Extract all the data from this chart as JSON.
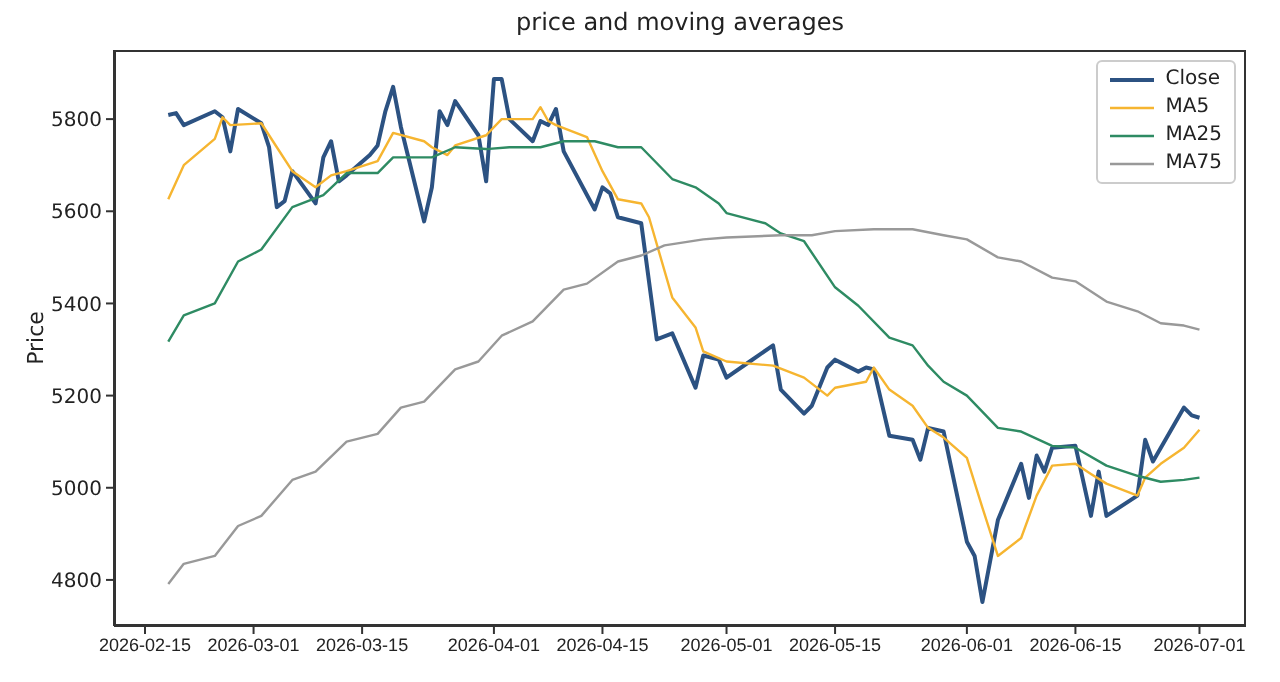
{
  "chart_data": {
    "type": "line",
    "title": "price and moving averages",
    "ylabel": "Price",
    "legend": "top right",
    "xlim": [
      "2026-02-11",
      "2026-07-07"
    ],
    "xticks": [
      "2026-02-15",
      "2026-03-01",
      "2026-03-15",
      "2026-04-01",
      "2026-04-15",
      "2026-05-01",
      "2026-05-15",
      "2026-06-01",
      "2026-06-15",
      "2026-07-01"
    ],
    "ylim": [
      4700,
      5950
    ],
    "yticks": [
      4800,
      5000,
      5200,
      5400,
      5600,
      5800
    ],
    "series": [
      {
        "name": "Close",
        "color": "#2c5282",
        "x": [
          "2026-02-18",
          "2026-02-19",
          "2026-02-20",
          "2026-02-24",
          "2026-02-25",
          "2026-02-26",
          "2026-02-27",
          "2026-03-02",
          "2026-03-03",
          "2026-03-04",
          "2026-03-05",
          "2026-03-06",
          "2026-03-09",
          "2026-03-10",
          "2026-03-11",
          "2026-03-12",
          "2026-03-13",
          "2026-03-16",
          "2026-03-17",
          "2026-03-18",
          "2026-03-19",
          "2026-03-20",
          "2026-03-23",
          "2026-03-24",
          "2026-03-25",
          "2026-03-26",
          "2026-03-27",
          "2026-03-30",
          "2026-03-31",
          "2026-04-01",
          "2026-04-02",
          "2026-04-03",
          "2026-04-06",
          "2026-04-07",
          "2026-04-08",
          "2026-04-09",
          "2026-04-10",
          "2026-04-14",
          "2026-04-15",
          "2026-04-16",
          "2026-04-17",
          "2026-04-20",
          "2026-04-22",
          "2026-04-24",
          "2026-04-27",
          "2026-04-28",
          "2026-04-30",
          "2026-05-01",
          "2026-05-04",
          "2026-05-07",
          "2026-05-08",
          "2026-05-11",
          "2026-05-12",
          "2026-05-14",
          "2026-05-15",
          "2026-05-18",
          "2026-05-19",
          "2026-05-20",
          "2026-05-22",
          "2026-05-25",
          "2026-05-26",
          "2026-05-27",
          "2026-05-29",
          "2026-06-01",
          "2026-06-02",
          "2026-06-03",
          "2026-06-05",
          "2026-06-08",
          "2026-06-09",
          "2026-06-10",
          "2026-06-11",
          "2026-06-12",
          "2026-06-15",
          "2026-06-17",
          "2026-06-18",
          "2026-06-19",
          "2026-06-23",
          "2026-06-24",
          "2026-06-25",
          "2026-06-29",
          "2026-06-30",
          "2026-07-01"
        ],
        "values": [
          5809,
          5813,
          5787,
          5817,
          5804,
          5730,
          5822,
          5791,
          5739,
          5609,
          5622,
          5687,
          5617,
          5717,
          5752,
          5665,
          5678,
          5722,
          5743,
          5817,
          5870,
          5783,
          5578,
          5652,
          5817,
          5787,
          5839,
          5765,
          5665,
          5887,
          5887,
          5800,
          5752,
          5796,
          5787,
          5822,
          5730,
          5604,
          5652,
          5639,
          5587,
          5574,
          5322,
          5335,
          5217,
          5287,
          5278,
          5239,
          5274,
          5309,
          5213,
          5161,
          5178,
          5261,
          5278,
          5252,
          5261,
          5257,
          5113,
          5104,
          5061,
          5130,
          5122,
          4883,
          4852,
          4752,
          4930,
          5052,
          4978,
          5070,
          5035,
          5087,
          5091,
          4939,
          5035,
          4939,
          4983,
          5104,
          5057,
          5174,
          5157,
          5152
        ]
      },
      {
        "name": "MA5",
        "color": "#f6b530",
        "x": [
          "2026-02-18",
          "2026-02-20",
          "2026-02-24",
          "2026-02-25",
          "2026-02-26",
          "2026-03-02",
          "2026-03-04",
          "2026-03-06",
          "2026-03-09",
          "2026-03-11",
          "2026-03-13",
          "2026-03-17",
          "2026-03-19",
          "2026-03-23",
          "2026-03-24",
          "2026-03-26",
          "2026-03-27",
          "2026-03-31",
          "2026-04-02",
          "2026-04-06",
          "2026-04-07",
          "2026-04-08",
          "2026-04-09",
          "2026-04-13",
          "2026-04-15",
          "2026-04-17",
          "2026-04-20",
          "2026-04-21",
          "2026-04-24",
          "2026-04-27",
          "2026-04-28",
          "2026-05-01",
          "2026-05-07",
          "2026-05-11",
          "2026-05-14",
          "2026-05-15",
          "2026-05-19",
          "2026-05-20",
          "2026-05-22",
          "2026-05-25",
          "2026-05-27",
          "2026-05-29",
          "2026-06-01",
          "2026-06-03",
          "2026-06-05",
          "2026-06-08",
          "2026-06-10",
          "2026-06-12",
          "2026-06-15",
          "2026-06-17",
          "2026-06-19",
          "2026-06-23",
          "2026-06-24",
          "2026-06-26",
          "2026-06-29",
          "2026-07-01"
        ],
        "values": [
          5626,
          5700,
          5757,
          5804,
          5787,
          5791,
          5739,
          5687,
          5652,
          5678,
          5687,
          5709,
          5770,
          5752,
          5739,
          5722,
          5743,
          5765,
          5800,
          5800,
          5826,
          5796,
          5787,
          5761,
          5687,
          5626,
          5617,
          5587,
          5413,
          5348,
          5296,
          5274,
          5265,
          5239,
          5200,
          5217,
          5230,
          5261,
          5213,
          5178,
          5130,
          5109,
          5065,
          4957,
          4852,
          4891,
          4983,
          5048,
          5052,
          5030,
          5009,
          4983,
          5022,
          5052,
          5087,
          5126
        ]
      },
      {
        "name": "MA25",
        "color": "#2e8b63",
        "x": [
          "2026-02-18",
          "2026-02-20",
          "2026-02-24",
          "2026-02-27",
          "2026-03-02",
          "2026-03-06",
          "2026-03-10",
          "2026-03-13",
          "2026-03-17",
          "2026-03-19",
          "2026-03-24",
          "2026-03-27",
          "2026-03-31",
          "2026-04-03",
          "2026-04-07",
          "2026-04-10",
          "2026-04-14",
          "2026-04-17",
          "2026-04-20",
          "2026-04-24",
          "2026-04-27",
          "2026-04-30",
          "2026-05-01",
          "2026-05-06",
          "2026-05-08",
          "2026-05-11",
          "2026-05-15",
          "2026-05-18",
          "2026-05-22",
          "2026-05-25",
          "2026-05-27",
          "2026-05-29",
          "2026-06-01",
          "2026-06-05",
          "2026-06-08",
          "2026-06-12",
          "2026-06-15",
          "2026-06-19",
          "2026-06-23",
          "2026-06-26",
          "2026-06-29",
          "2026-07-01"
        ],
        "values": [
          5317,
          5374,
          5400,
          5491,
          5517,
          5609,
          5635,
          5683,
          5683,
          5717,
          5717,
          5739,
          5735,
          5739,
          5739,
          5752,
          5752,
          5739,
          5739,
          5670,
          5652,
          5617,
          5596,
          5574,
          5552,
          5535,
          5435,
          5395,
          5326,
          5309,
          5265,
          5230,
          5200,
          5130,
          5122,
          5091,
          5087,
          5048,
          5026,
          5013,
          5017,
          5022
        ]
      },
      {
        "name": "MA75",
        "color": "#999999",
        "x": [
          "2026-02-18",
          "2026-02-20",
          "2026-02-24",
          "2026-02-27",
          "2026-03-02",
          "2026-03-06",
          "2026-03-09",
          "2026-03-13",
          "2026-03-17",
          "2026-03-20",
          "2026-03-23",
          "2026-03-27",
          "2026-03-30",
          "2026-04-02",
          "2026-04-06",
          "2026-04-10",
          "2026-04-13",
          "2026-04-17",
          "2026-04-20",
          "2026-04-23",
          "2026-04-28",
          "2026-05-01",
          "2026-05-08",
          "2026-05-12",
          "2026-05-15",
          "2026-05-20",
          "2026-05-25",
          "2026-05-29",
          "2026-06-01",
          "2026-06-05",
          "2026-06-08",
          "2026-06-12",
          "2026-06-15",
          "2026-06-19",
          "2026-06-23",
          "2026-06-26",
          "2026-06-29",
          "2026-07-01"
        ],
        "values": [
          4791,
          4835,
          4852,
          4917,
          4939,
          5017,
          5035,
          5100,
          5117,
          5174,
          5187,
          5257,
          5274,
          5330,
          5361,
          5430,
          5443,
          5491,
          5504,
          5526,
          5539,
          5543,
          5548,
          5548,
          5557,
          5561,
          5561,
          5548,
          5539,
          5500,
          5491,
          5456,
          5448,
          5404,
          5383,
          5357,
          5352,
          5343
        ]
      }
    ]
  }
}
